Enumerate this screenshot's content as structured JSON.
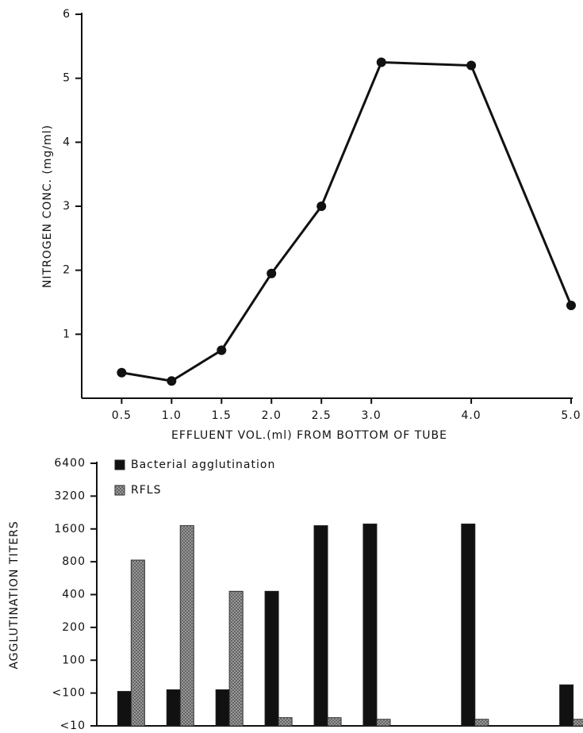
{
  "chart_data": [
    {
      "type": "line",
      "y_label": "NITROGEN CONC. (mg/ml)",
      "x_label": "EFFLUENT VOL.(ml) FROM BOTTOM OF TUBE",
      "x": [
        0.5,
        1.0,
        1.5,
        2.0,
        2.5,
        3.1,
        4.0,
        5.0
      ],
      "values": [
        0.4,
        0.27,
        0.75,
        1.95,
        3.0,
        5.25,
        5.2,
        1.45
      ],
      "color": "#111111",
      "xlim": [
        0.1,
        5.0
      ],
      "xticks": [
        0.5,
        {
          "value": 1.0,
          "label": "1.0"
        },
        1.5,
        {
          "value": 2.0,
          "label": "2.0"
        },
        2.5,
        {
          "value": 3.0,
          "label": "3.0"
        },
        {
          "value": 4.0,
          "label": "4.0"
        },
        {
          "value": 5.0,
          "label": "5.0"
        }
      ],
      "ylim": [
        0,
        6
      ],
      "yticks": [
        1,
        2,
        3,
        4,
        5,
        6
      ]
    },
    {
      "type": "bar",
      "y_label": "AGGLUTINATION TITERS",
      "x": [
        0.5,
        1.0,
        1.5,
        2.0,
        2.5,
        3.0,
        4.0,
        5.0
      ],
      "xlim": [
        0.15,
        5.1
      ],
      "series": [
        {
          "name": "Bacterial agglutination",
          "color": "#111111",
          "values": [
            1.05,
            1.1,
            1.1,
            4.1,
            6.1,
            6.15,
            6.15,
            1.25
          ]
        },
        {
          "name": "RFLS",
          "color": "#a8a8a8",
          "values": [
            5.05,
            6.1,
            4.1,
            0.25,
            0.25,
            0.2,
            0.2,
            0.2
          ]
        }
      ],
      "ylim": [
        0,
        8
      ],
      "yticks": [
        {
          "value": 0,
          "label": "<10"
        },
        {
          "value": 1,
          "label": "<100"
        },
        {
          "value": 2,
          "label": "100"
        },
        {
          "value": 3,
          "label": "200"
        },
        {
          "value": 4,
          "label": "400"
        },
        {
          "value": 5,
          "label": "800"
        },
        {
          "value": 6,
          "label": "1600"
        },
        {
          "value": 7,
          "label": "3200"
        },
        {
          "value": 8,
          "label": "6400"
        }
      ],
      "legend": "upper-left"
    }
  ]
}
